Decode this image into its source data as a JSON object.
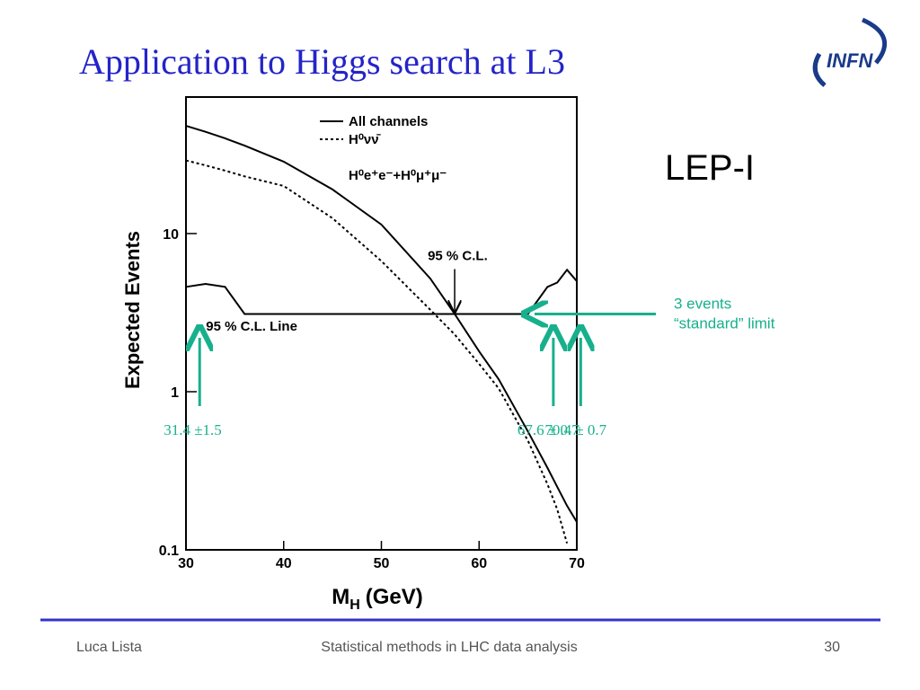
{
  "slide": {
    "title": "Application to Higgs search at L3",
    "logo": "INFN",
    "side_label": "LEP-I",
    "footer_left": "Luca Lista",
    "footer_center": "Statistical methods in LHC data analysis",
    "footer_right": "30"
  },
  "chart_data": {
    "type": "line",
    "ylabel": "Expected Events",
    "xlabel": {
      "main": "M",
      "sub": "H",
      "rest": "(GeV)"
    },
    "xlim": [
      30,
      70
    ],
    "xticks": [
      30,
      40,
      50,
      60,
      70
    ],
    "ylim": [
      0.1,
      73
    ],
    "yticks": [
      0.1,
      1,
      10
    ],
    "log_y": true,
    "legend_extra": "H⁰e⁺e⁻+H⁰μ⁺μ⁻",
    "x": [
      30,
      32,
      34,
      36,
      40,
      45,
      50,
      55,
      57.5,
      60,
      62,
      65,
      67,
      68,
      69,
      70
    ],
    "series": [
      {
        "name": "All channels",
        "color": "#000000",
        "style": "solid",
        "values": [
          48,
          44,
          40,
          36,
          28.5,
          19,
          11.4,
          5.2,
          3.1,
          1.8,
          1.2,
          0.56,
          0.33,
          0.25,
          0.19,
          0.15
        ]
      },
      {
        "name": "H⁰νν̄",
        "color": "#000000",
        "style": "dashed",
        "values": [
          29,
          27,
          25,
          23,
          20,
          12.5,
          6.7,
          3.3,
          2.3,
          1.5,
          1.05,
          0.49,
          0.26,
          0.18,
          0.11,
          null
        ]
      },
      {
        "name": "95 % C.L. Line",
        "color": "#000000",
        "style": "solid",
        "label_x": 36,
        "label_y": 2.6,
        "values": [
          4.6,
          4.8,
          4.6,
          3.1,
          3.1,
          3.1,
          3.1,
          3.1,
          3.1,
          3.1,
          3.1,
          3.1,
          4.6,
          4.9,
          5.9,
          5.0
        ]
      }
    ],
    "annotations": [
      {
        "text": "95 % C.L.",
        "x": 57.5,
        "y": 3.1
      },
      {
        "text": "31.4 ±1.5",
        "x": 31.4
      },
      {
        "text": "67.6 ± 0.7",
        "x": 67.6
      },
      {
        "text": "70.4 ± 0.7",
        "x": 70.4
      },
      {
        "lines": [
          "3 events",
          "“standard” limit"
        ],
        "y": 3.1
      }
    ]
  }
}
